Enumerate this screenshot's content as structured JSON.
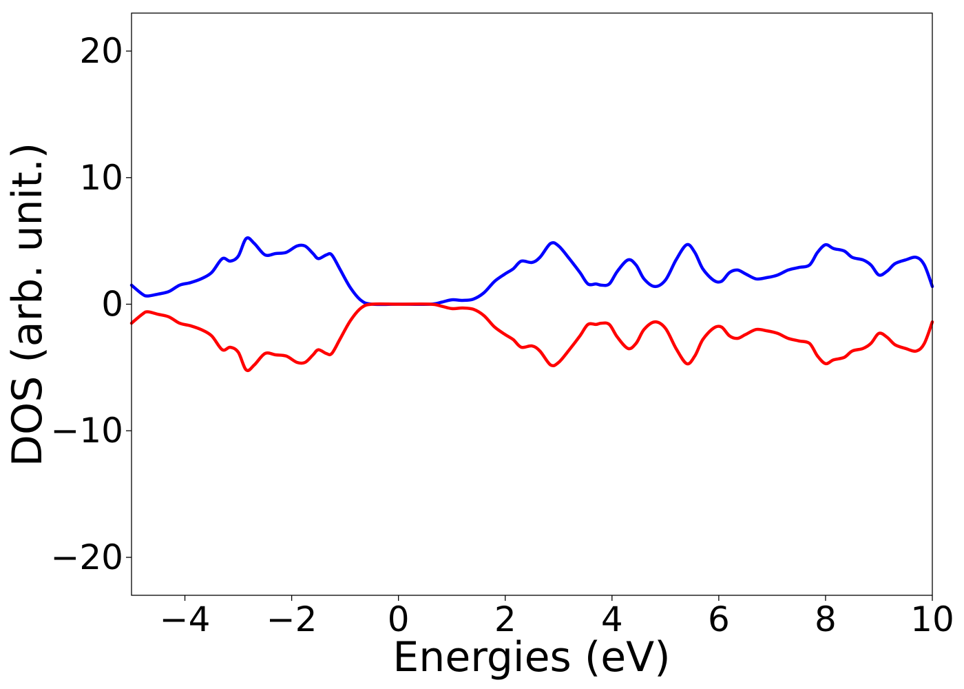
{
  "chart_data": {
    "type": "line",
    "title": "",
    "xlabel": "Energies (eV)",
    "ylabel": "DOS (arb. unit.)",
    "xlim": [
      -5,
      10
    ],
    "ylim": [
      -23,
      23
    ],
    "xticks": [
      -4,
      -2,
      0,
      2,
      4,
      6,
      8,
      10
    ],
    "xtick_labels": [
      "−4",
      "−2",
      "0",
      "2",
      "4",
      "6",
      "8",
      "10"
    ],
    "yticks": [
      -20,
      -10,
      0,
      10,
      20
    ],
    "ytick_labels": [
      "−20",
      "−10",
      "0",
      "10",
      "20"
    ],
    "grid": false,
    "legend": false,
    "series": [
      {
        "color": "#0000ff",
        "points": [
          [
            -5.0,
            1.5
          ],
          [
            -4.8,
            0.8
          ],
          [
            -4.7,
            0.65
          ],
          [
            -4.5,
            0.8
          ],
          [
            -4.3,
            1.0
          ],
          [
            -4.1,
            1.5
          ],
          [
            -3.9,
            1.7
          ],
          [
            -3.7,
            2.0
          ],
          [
            -3.5,
            2.5
          ],
          [
            -3.3,
            3.6
          ],
          [
            -3.15,
            3.4
          ],
          [
            -3.0,
            3.8
          ],
          [
            -2.85,
            5.2
          ],
          [
            -2.7,
            4.8
          ],
          [
            -2.5,
            3.9
          ],
          [
            -2.3,
            4.0
          ],
          [
            -2.1,
            4.1
          ],
          [
            -1.9,
            4.6
          ],
          [
            -1.75,
            4.6
          ],
          [
            -1.6,
            4.0
          ],
          [
            -1.5,
            3.6
          ],
          [
            -1.35,
            3.9
          ],
          [
            -1.25,
            3.9
          ],
          [
            -1.1,
            2.8
          ],
          [
            -0.9,
            1.3
          ],
          [
            -0.7,
            0.3
          ],
          [
            -0.5,
            0.0
          ],
          [
            0.0,
            0.0
          ],
          [
            0.6,
            0.0
          ],
          [
            0.8,
            0.15
          ],
          [
            1.0,
            0.35
          ],
          [
            1.2,
            0.3
          ],
          [
            1.4,
            0.4
          ],
          [
            1.6,
            0.9
          ],
          [
            1.8,
            1.8
          ],
          [
            2.0,
            2.4
          ],
          [
            2.15,
            2.8
          ],
          [
            2.3,
            3.4
          ],
          [
            2.5,
            3.3
          ],
          [
            2.65,
            3.7
          ],
          [
            2.85,
            4.8
          ],
          [
            3.0,
            4.6
          ],
          [
            3.2,
            3.6
          ],
          [
            3.4,
            2.5
          ],
          [
            3.55,
            1.6
          ],
          [
            3.7,
            1.6
          ],
          [
            3.8,
            1.5
          ],
          [
            3.95,
            1.6
          ],
          [
            4.1,
            2.6
          ],
          [
            4.3,
            3.5
          ],
          [
            4.45,
            3.1
          ],
          [
            4.6,
            2.0
          ],
          [
            4.8,
            1.4
          ],
          [
            5.0,
            1.9
          ],
          [
            5.2,
            3.5
          ],
          [
            5.4,
            4.7
          ],
          [
            5.55,
            4.1
          ],
          [
            5.7,
            2.8
          ],
          [
            5.9,
            1.9
          ],
          [
            6.05,
            1.8
          ],
          [
            6.2,
            2.5
          ],
          [
            6.35,
            2.7
          ],
          [
            6.5,
            2.4
          ],
          [
            6.7,
            2.0
          ],
          [
            6.9,
            2.1
          ],
          [
            7.1,
            2.3
          ],
          [
            7.3,
            2.7
          ],
          [
            7.5,
            2.9
          ],
          [
            7.7,
            3.1
          ],
          [
            7.85,
            4.1
          ],
          [
            8.0,
            4.7
          ],
          [
            8.15,
            4.4
          ],
          [
            8.35,
            4.2
          ],
          [
            8.5,
            3.7
          ],
          [
            8.7,
            3.5
          ],
          [
            8.85,
            3.1
          ],
          [
            9.0,
            2.3
          ],
          [
            9.15,
            2.6
          ],
          [
            9.3,
            3.2
          ],
          [
            9.5,
            3.5
          ],
          [
            9.7,
            3.7
          ],
          [
            9.85,
            3.1
          ],
          [
            10.0,
            1.4
          ]
        ]
      },
      {
        "color": "#ff0000",
        "points": [
          [
            -5.0,
            -1.5
          ],
          [
            -4.8,
            -0.8
          ],
          [
            -4.7,
            -0.6
          ],
          [
            -4.5,
            -0.8
          ],
          [
            -4.3,
            -1.0
          ],
          [
            -4.1,
            -1.5
          ],
          [
            -3.9,
            -1.7
          ],
          [
            -3.7,
            -2.0
          ],
          [
            -3.5,
            -2.5
          ],
          [
            -3.3,
            -3.6
          ],
          [
            -3.15,
            -3.4
          ],
          [
            -3.0,
            -3.8
          ],
          [
            -2.85,
            -5.2
          ],
          [
            -2.7,
            -4.8
          ],
          [
            -2.5,
            -3.9
          ],
          [
            -2.3,
            -4.0
          ],
          [
            -2.1,
            -4.1
          ],
          [
            -1.9,
            -4.6
          ],
          [
            -1.75,
            -4.6
          ],
          [
            -1.6,
            -4.0
          ],
          [
            -1.5,
            -3.6
          ],
          [
            -1.35,
            -3.9
          ],
          [
            -1.25,
            -3.9
          ],
          [
            -1.1,
            -2.8
          ],
          [
            -0.9,
            -1.3
          ],
          [
            -0.7,
            -0.3
          ],
          [
            -0.5,
            0.0
          ],
          [
            0.0,
            0.0
          ],
          [
            0.6,
            0.0
          ],
          [
            0.8,
            -0.15
          ],
          [
            1.0,
            -0.35
          ],
          [
            1.2,
            -0.3
          ],
          [
            1.4,
            -0.4
          ],
          [
            1.6,
            -0.9
          ],
          [
            1.8,
            -1.8
          ],
          [
            2.0,
            -2.4
          ],
          [
            2.15,
            -2.8
          ],
          [
            2.3,
            -3.4
          ],
          [
            2.5,
            -3.3
          ],
          [
            2.65,
            -3.7
          ],
          [
            2.85,
            -4.8
          ],
          [
            3.0,
            -4.6
          ],
          [
            3.2,
            -3.6
          ],
          [
            3.4,
            -2.5
          ],
          [
            3.55,
            -1.6
          ],
          [
            3.7,
            -1.6
          ],
          [
            3.8,
            -1.5
          ],
          [
            3.95,
            -1.6
          ],
          [
            4.1,
            -2.6
          ],
          [
            4.3,
            -3.5
          ],
          [
            4.45,
            -3.1
          ],
          [
            4.6,
            -2.0
          ],
          [
            4.8,
            -1.4
          ],
          [
            5.0,
            -1.9
          ],
          [
            5.2,
            -3.5
          ],
          [
            5.4,
            -4.7
          ],
          [
            5.55,
            -4.1
          ],
          [
            5.7,
            -2.8
          ],
          [
            5.9,
            -1.9
          ],
          [
            6.05,
            -1.8
          ],
          [
            6.2,
            -2.5
          ],
          [
            6.35,
            -2.7
          ],
          [
            6.5,
            -2.4
          ],
          [
            6.7,
            -2.0
          ],
          [
            6.9,
            -2.1
          ],
          [
            7.1,
            -2.3
          ],
          [
            7.3,
            -2.7
          ],
          [
            7.5,
            -2.9
          ],
          [
            7.7,
            -3.1
          ],
          [
            7.85,
            -4.1
          ],
          [
            8.0,
            -4.7
          ],
          [
            8.15,
            -4.4
          ],
          [
            8.35,
            -4.2
          ],
          [
            8.5,
            -3.7
          ],
          [
            8.7,
            -3.5
          ],
          [
            8.85,
            -3.1
          ],
          [
            9.0,
            -2.3
          ],
          [
            9.15,
            -2.6
          ],
          [
            9.3,
            -3.2
          ],
          [
            9.5,
            -3.5
          ],
          [
            9.7,
            -3.7
          ],
          [
            9.85,
            -3.1
          ],
          [
            10.0,
            -1.4
          ]
        ]
      }
    ]
  }
}
